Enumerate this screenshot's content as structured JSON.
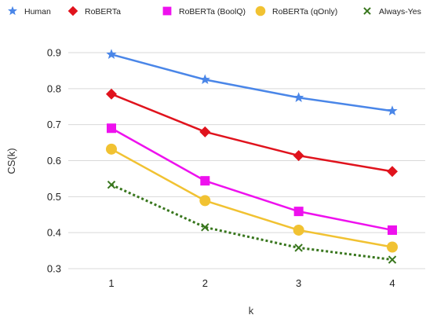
{
  "chart_data": {
    "type": "line",
    "title": "",
    "xlabel": "k",
    "ylabel": "CS(k)",
    "x": [
      1,
      2,
      3,
      4
    ],
    "x_tick_labels": [
      "1",
      "2",
      "3",
      "4"
    ],
    "ylim": [
      0.3,
      0.9
    ],
    "y_ticks": [
      0.3,
      0.4,
      0.5,
      0.6,
      0.7,
      0.8,
      0.9
    ],
    "y_tick_labels": [
      "0.3",
      "0.4",
      "0.5",
      "0.6",
      "0.7",
      "0.8",
      "0.9"
    ],
    "grid": "horizontal",
    "legend_position": "top",
    "series": [
      {
        "name": "Human",
        "values": [
          0.895,
          0.825,
          0.775,
          0.738
        ],
        "color": "#4a86e8",
        "marker": "star",
        "line_style": "solid"
      },
      {
        "name": "RoBERTa",
        "values": [
          0.785,
          0.68,
          0.614,
          0.57
        ],
        "color": "#e0131d",
        "marker": "diamond",
        "line_style": "solid"
      },
      {
        "name": "RoBERTa (BoolQ)",
        "values": [
          0.69,
          0.544,
          0.459,
          0.407
        ],
        "color": "#ee11ee",
        "marker": "square",
        "line_style": "solid"
      },
      {
        "name": "RoBERTa (qOnly)",
        "values": [
          0.632,
          0.489,
          0.407,
          0.36
        ],
        "color": "#f1c232",
        "marker": "circle",
        "line_style": "solid"
      },
      {
        "name": "Always-Yes",
        "values": [
          0.533,
          0.415,
          0.358,
          0.325
        ],
        "color": "#38761d",
        "marker": "x",
        "line_style": "dotted"
      }
    ]
  }
}
